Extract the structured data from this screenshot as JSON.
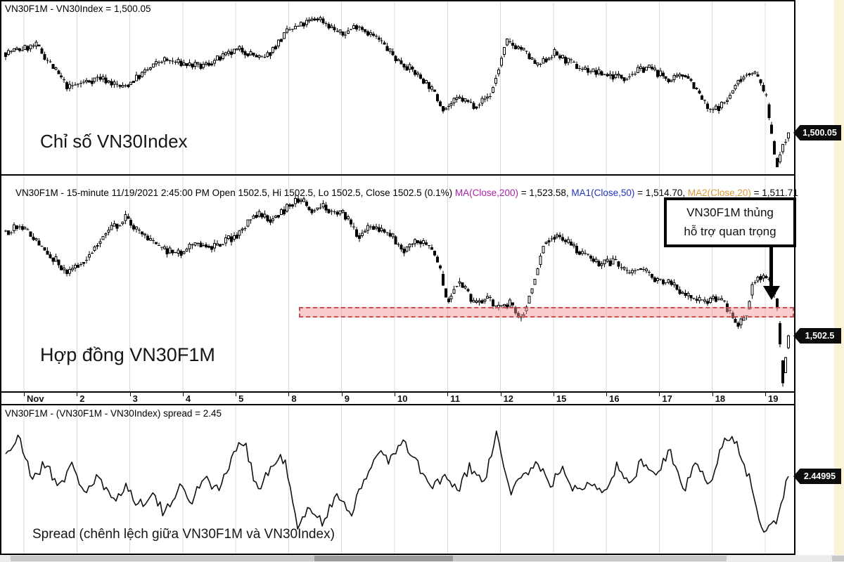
{
  "panels": {
    "index": {
      "title": "VN30F1M - VN30Index = 1,500.05",
      "label": "Chỉ số VN30Index",
      "price_tag": "1,500.05"
    },
    "futures": {
      "title_main": "VN30F1M - 15-minute 11/19/2021 2:45:00 PM Open 1502.5, Hi 1502.5, Lo 1502.5, Close 1502.5 (0.1%) ",
      "ma200_label": "MA(Close,200)",
      "ma200_value": " = 1,523.58, ",
      "ma1_label": "MA1(Close,50)",
      "ma1_value": " = 1,514.70, ",
      "ma2_label": "MA2(Close,20)",
      "ma2_value": " = 1,511.71",
      "label": "Hợp đồng VN30F1M",
      "price_tag": "1,502.5",
      "annotation": {
        "line1": "VN30F1M thủng",
        "line2": "hỗ trợ quan trọng"
      }
    },
    "spread": {
      "title": "VN30F1M - (VN30F1M - VN30Index) spread = 2.45",
      "label": "Spread (chênh lệch giữa VN30F1M và VN30Index)",
      "price_tag": "2.44995"
    }
  },
  "colors": {
    "ma200": "#aa22aa",
    "ma1": "#2233bb",
    "ma2": "#dd9933",
    "support_zone_fill": "#f39696",
    "support_zone_border": "#c85050",
    "grid": "#d9d9d9",
    "tag_bg": "#0c0c0c"
  },
  "chart_data": {
    "x_tick_labels": [
      "Nov",
      "2",
      "3",
      "4",
      "5",
      "8",
      "9",
      "10",
      "11",
      "12",
      "15",
      "16",
      "17",
      "18",
      "19"
    ],
    "panels": [
      {
        "id": "vn30index",
        "type": "candlestick",
        "title": "VN30F1M - VN30Index = 1,500.05",
        "interval": "15-minute",
        "last_close": 1500.05,
        "price_range": [
          1479,
          1567
        ],
        "anchors": [
          [
            0.0,
            1540.9
          ],
          [
            0.04,
            1544.5
          ],
          [
            0.08,
            1523.0
          ],
          [
            0.12,
            1528.4
          ],
          [
            0.15,
            1523.0
          ],
          [
            0.2,
            1537.3
          ],
          [
            0.25,
            1533.7
          ],
          [
            0.3,
            1542.7
          ],
          [
            0.33,
            1537.3
          ],
          [
            0.36,
            1551.6
          ],
          [
            0.4,
            1558.8
          ],
          [
            0.43,
            1549.8
          ],
          [
            0.45,
            1555.2
          ],
          [
            0.48,
            1546.3
          ],
          [
            0.5,
            1537.3
          ],
          [
            0.52,
            1531.9
          ],
          [
            0.54,
            1524.8
          ],
          [
            0.56,
            1512.3
          ],
          [
            0.58,
            1517.6
          ],
          [
            0.6,
            1514.1
          ],
          [
            0.62,
            1519.4
          ],
          [
            0.64,
            1546.3
          ],
          [
            0.66,
            1542.7
          ],
          [
            0.68,
            1533.7
          ],
          [
            0.7,
            1540.9
          ],
          [
            0.73,
            1533.7
          ],
          [
            0.76,
            1530.2
          ],
          [
            0.79,
            1528.4
          ],
          [
            0.82,
            1533.7
          ],
          [
            0.85,
            1526.6
          ],
          [
            0.87,
            1530.2
          ],
          [
            0.9,
            1510.5
          ],
          [
            0.92,
            1515.8
          ],
          [
            0.94,
            1528.4
          ],
          [
            0.955,
            1531.9
          ],
          [
            0.97,
            1521.2
          ],
          [
            0.985,
            1483.7
          ],
          [
            1.0,
            1500.05
          ]
        ]
      },
      {
        "id": "vn30f1m",
        "type": "candlestick",
        "title": "VN30F1M 15-minute",
        "last_close": 1502.5,
        "price_range": [
          1474.3,
          1576.8
        ],
        "ma": {
          "ma200": 1523.58,
          "ma50": 1514.7,
          "ma20": 1511.71
        },
        "support_zone": {
          "price_from": 1511.8,
          "price_to": 1517.1,
          "x_start_frac": 0.375
        },
        "anchors": [
          [
            0.0,
            1555.4
          ],
          [
            0.02,
            1558.9
          ],
          [
            0.05,
            1546.4
          ],
          [
            0.08,
            1533.9
          ],
          [
            0.1,
            1541.1
          ],
          [
            0.13,
            1555.4
          ],
          [
            0.155,
            1562.5
          ],
          [
            0.17,
            1555.4
          ],
          [
            0.2,
            1546.4
          ],
          [
            0.22,
            1543.9
          ],
          [
            0.25,
            1550.0
          ],
          [
            0.27,
            1547.5
          ],
          [
            0.3,
            1555.4
          ],
          [
            0.32,
            1564.3
          ],
          [
            0.34,
            1561.8
          ],
          [
            0.36,
            1567.9
          ],
          [
            0.375,
            1572.5
          ],
          [
            0.39,
            1566.1
          ],
          [
            0.405,
            1568.9
          ],
          [
            0.42,
            1565.4
          ],
          [
            0.435,
            1563.9
          ],
          [
            0.45,
            1553.6
          ],
          [
            0.47,
            1558.2
          ],
          [
            0.49,
            1554.6
          ],
          [
            0.51,
            1546.1
          ],
          [
            0.53,
            1551.1
          ],
          [
            0.55,
            1543.9
          ],
          [
            0.565,
            1519.6
          ],
          [
            0.58,
            1531.4
          ],
          [
            0.6,
            1517.5
          ],
          [
            0.615,
            1522.5
          ],
          [
            0.63,
            1516.1
          ],
          [
            0.645,
            1518.9
          ],
          [
            0.66,
            1510.7
          ],
          [
            0.67,
            1522.5
          ],
          [
            0.69,
            1551.1
          ],
          [
            0.705,
            1554.6
          ],
          [
            0.72,
            1549.3
          ],
          [
            0.74,
            1543.9
          ],
          [
            0.76,
            1538.6
          ],
          [
            0.78,
            1540.4
          ],
          [
            0.795,
            1533.2
          ],
          [
            0.81,
            1536.8
          ],
          [
            0.83,
            1531.4
          ],
          [
            0.85,
            1529.6
          ],
          [
            0.865,
            1524.3
          ],
          [
            0.88,
            1520.7
          ],
          [
            0.895,
            1518.9
          ],
          [
            0.91,
            1522.5
          ],
          [
            0.925,
            1515.4
          ],
          [
            0.935,
            1508.2
          ],
          [
            0.945,
            1510.0
          ],
          [
            0.955,
            1529.6
          ],
          [
            0.965,
            1533.2
          ],
          [
            0.975,
            1531.4
          ],
          [
            0.985,
            1522.5
          ],
          [
            0.993,
            1478.6
          ],
          [
            1.0,
            1502.5
          ]
        ]
      },
      {
        "id": "spread",
        "type": "line",
        "title": "VN30F1M - VN30Index spread",
        "last_value": 2.44995,
        "value_range": [
          -0.3,
          4.4
        ],
        "values": [
          3.28,
          3.78,
          2.4,
          2.9,
          2.15,
          2.78,
          1.9,
          2.4,
          1.53,
          2.15,
          1.4,
          1.9,
          1.03,
          2.15,
          1.53,
          2.53,
          1.9,
          3.03,
          3.78,
          1.9,
          2.78,
          3.15,
          0.53,
          1.4,
          0.78,
          1.9,
          1.15,
          2.15,
          3.4,
          3.03,
          3.65,
          2.9,
          2.03,
          2.4,
          1.9,
          2.78,
          2.15,
          3.9,
          1.9,
          2.4,
          3.03,
          2.15,
          2.65,
          1.9,
          2.4,
          1.9,
          2.78,
          2.15,
          3.03,
          2.4,
          3.4,
          1.9,
          2.9,
          2.15,
          3.65,
          3.78,
          2.4,
          0.65,
          0.78,
          2.45
        ]
      }
    ]
  }
}
